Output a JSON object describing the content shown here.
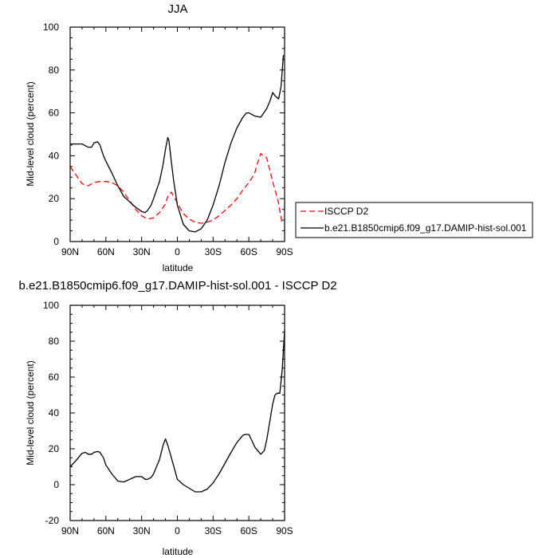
{
  "chart_data": [
    {
      "type": "line",
      "title": "JJA",
      "xlabel": "latitude",
      "ylabel": "Mid-level cloud (percent)",
      "xlim": [
        90,
        -90
      ],
      "ylim": [
        0,
        100
      ],
      "x_ticks": [
        90,
        60,
        30,
        0,
        -30,
        -60,
        -90
      ],
      "x_tick_labels": [
        "90N",
        "60N",
        "30N",
        "0",
        "30S",
        "60S",
        "90S"
      ],
      "y_ticks": [
        0,
        20,
        40,
        60,
        80,
        100
      ],
      "y_tick_labels": [
        "0",
        "20",
        "40",
        "60",
        "80",
        "100"
      ],
      "legend_position": "right",
      "series": [
        {
          "name": "ISCCP D2",
          "color": "#ff0000",
          "dash": "dashed",
          "x": [
            90,
            85,
            80,
            75,
            70,
            65,
            60,
            55,
            50,
            45,
            40,
            35,
            30,
            25,
            20,
            15,
            10,
            8,
            5,
            0,
            -5,
            -10,
            -15,
            -20,
            -25,
            -30,
            -35,
            -40,
            -45,
            -50,
            -55,
            -60,
            -63,
            -65,
            -67,
            -70,
            -75,
            -80,
            -85,
            -88
          ],
          "values": [
            35,
            31,
            27,
            26,
            27.5,
            28,
            28,
            27.5,
            26,
            23,
            19,
            15,
            12,
            10.5,
            11,
            13.5,
            17.5,
            21,
            23,
            18,
            13,
            10.5,
            9,
            8.5,
            9,
            10,
            12,
            14.5,
            17,
            20,
            24,
            27.5,
            30,
            32,
            36,
            41,
            39,
            28,
            18,
            8
          ]
        },
        {
          "name": "b.e21.B1850cmip6.f09_g17.DAMIP-hist-sol.001",
          "color": "#000000",
          "dash": "solid",
          "x": [
            90,
            85,
            80,
            75,
            72,
            70,
            67,
            65,
            62,
            60,
            55,
            50,
            45,
            40,
            35,
            30,
            27,
            25,
            22,
            20,
            15,
            12,
            10,
            8,
            7,
            5,
            3,
            0,
            -5,
            -10,
            -15,
            -20,
            -25,
            -30,
            -35,
            -40,
            -45,
            -50,
            -55,
            -58,
            -60,
            -65,
            -70,
            -75,
            -78,
            -80,
            -82,
            -85,
            -87,
            -89
          ],
          "values": [
            45.5,
            45.5,
            45.5,
            44,
            44,
            46,
            46.5,
            45,
            40,
            37.5,
            32,
            26,
            21,
            18.5,
            16,
            14,
            13.5,
            14.5,
            17,
            20,
            28,
            36,
            43,
            48.5,
            47,
            37,
            28,
            17,
            8,
            5,
            4.5,
            6,
            10,
            17,
            26,
            37,
            46,
            53,
            58,
            60,
            60,
            58.5,
            58,
            62,
            66,
            69.5,
            68,
            66.5,
            72,
            87
          ]
        }
      ]
    },
    {
      "type": "line",
      "title": "b.e21.B1850cmip6.f09_g17.DAMIP-hist-sol.001 - ISCCP D2",
      "xlabel": "latitude",
      "ylabel": "Mid-level cloud (percent)",
      "xlim": [
        90,
        -90
      ],
      "ylim": [
        -20,
        100
      ],
      "x_ticks": [
        90,
        60,
        30,
        0,
        -30,
        -60,
        -90
      ],
      "x_tick_labels": [
        "90N",
        "60N",
        "30N",
        "0",
        "30S",
        "60S",
        "90S"
      ],
      "y_ticks": [
        -20,
        0,
        20,
        40,
        60,
        80,
        100
      ],
      "y_tick_labels": [
        "-20",
        "0",
        "20",
        "40",
        "60",
        "80",
        "100"
      ],
      "series": [
        {
          "color": "#000000",
          "dash": "solid",
          "x": [
            90,
            85,
            80,
            77,
            75,
            72,
            70,
            67,
            65,
            62,
            60,
            55,
            50,
            45,
            40,
            35,
            32,
            30,
            27,
            25,
            22,
            20,
            15,
            12,
            10,
            8,
            5,
            0,
            -5,
            -10,
            -15,
            -20,
            -25,
            -30,
            -35,
            -40,
            -45,
            -50,
            -55,
            -57,
            -60,
            -63,
            -65,
            -70,
            -73,
            -75,
            -78,
            -80,
            -82,
            -84,
            -86,
            -88,
            -90
          ],
          "values": [
            10,
            13.5,
            17.5,
            18,
            17,
            17,
            18,
            18.5,
            18,
            15,
            11,
            6,
            2,
            1.5,
            3,
            4.5,
            4.5,
            4.5,
            3,
            3,
            4,
            6,
            14,
            22,
            25.5,
            22,
            15,
            3,
            0,
            -2,
            -4,
            -4,
            -2.5,
            1,
            6,
            12,
            18,
            23.5,
            27.5,
            28,
            28,
            24,
            21,
            17,
            19,
            25,
            37,
            45,
            50,
            51,
            51,
            64,
            86
          ]
        }
      ]
    }
  ]
}
